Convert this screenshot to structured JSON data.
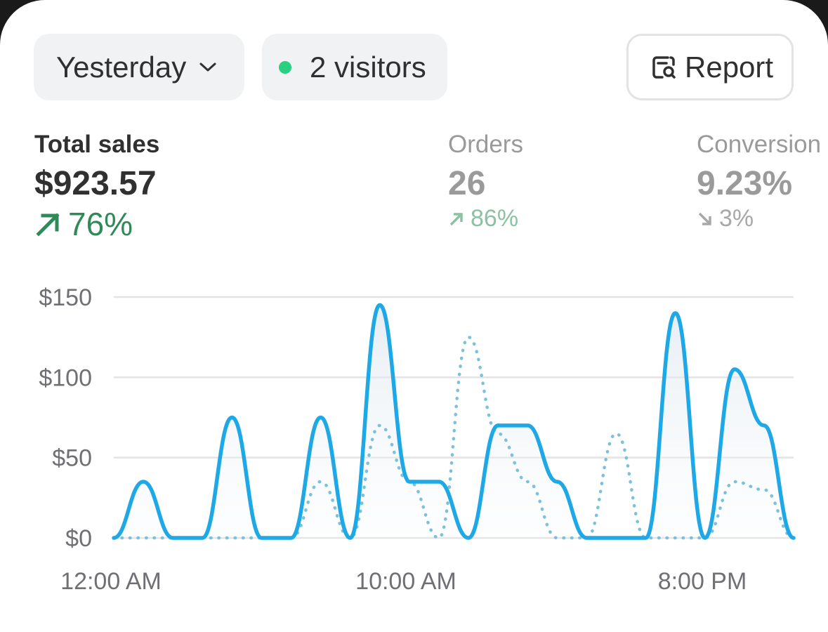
{
  "filters": {
    "date_label": "Yesterday",
    "visitors_label": "2 visitors",
    "report_label": "Report"
  },
  "metrics": [
    {
      "label": "Total sales",
      "value": "$923.57",
      "change": "76%",
      "direction": "up",
      "color": "#2f8a58"
    },
    {
      "label": "Orders",
      "value": "26",
      "change": "86%",
      "direction": "up"
    },
    {
      "label": "Conversion",
      "value": "9.23%",
      "change": "3%",
      "direction": "down"
    }
  ],
  "colors": {
    "accent": "#1ea9e6",
    "comparison": "#7cc1dc",
    "positive": "#2f8a58",
    "live_dot": "#29d07f"
  },
  "chart_data": {
    "type": "area",
    "ylim": [
      0,
      150
    ],
    "y_ticks": [
      "$0",
      "$50",
      "$100",
      "$150"
    ],
    "y_tick_values": [
      0,
      50,
      100,
      150
    ],
    "x_tick_labels": [
      "12:00 AM",
      "10:00 AM",
      "8:00 PM"
    ],
    "series": [
      {
        "style": "solid",
        "x": [
          0,
          1,
          2,
          3,
          4,
          5,
          6,
          7,
          8,
          9,
          10,
          11,
          12,
          13,
          14,
          15,
          16,
          17,
          18,
          19,
          20,
          21,
          22,
          23
        ],
        "values": [
          0,
          35,
          0,
          0,
          75,
          0,
          0,
          75,
          0,
          145,
          35,
          35,
          0,
          70,
          70,
          35,
          0,
          0,
          0,
          140,
          0,
          105,
          70,
          0
        ]
      },
      {
        "style": "dotted",
        "x": [
          0,
          1,
          2,
          3,
          4,
          5,
          6,
          7,
          8,
          9,
          10,
          11,
          12,
          13,
          14,
          15,
          16,
          17,
          18,
          19,
          20,
          21,
          22,
          23
        ],
        "values": [
          0,
          0,
          0,
          0,
          0,
          0,
          0,
          35,
          0,
          70,
          35,
          0,
          125,
          65,
          35,
          0,
          0,
          65,
          0,
          0,
          0,
          35,
          30,
          0
        ]
      }
    ]
  }
}
